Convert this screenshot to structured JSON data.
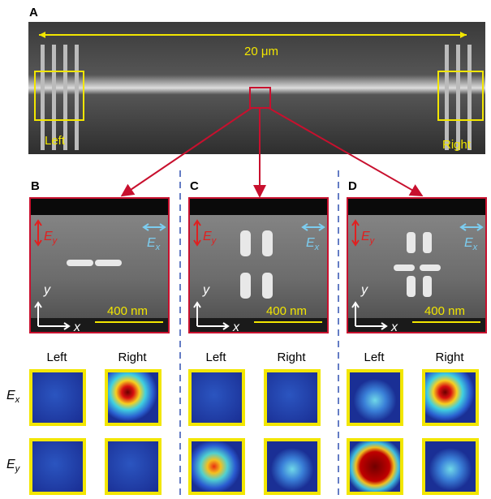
{
  "panel_a": {
    "label": "A",
    "scale_label": "20 μm",
    "left_label": "Left",
    "right_label": "Right"
  },
  "panels": [
    {
      "label": "B",
      "ey": {
        "symbol": "E",
        "subscript": "y"
      },
      "ex": {
        "symbol": "E",
        "subscript": "x"
      },
      "axis_y": "y",
      "axis_x": "x",
      "scale_label": "400 nm",
      "columns": [
        "Left",
        "Right"
      ]
    },
    {
      "label": "C",
      "ey": {
        "symbol": "E",
        "subscript": "y"
      },
      "ex": {
        "symbol": "E",
        "subscript": "x"
      },
      "axis_y": "y",
      "axis_x": "x",
      "scale_label": "400 nm",
      "columns": [
        "Left",
        "Right"
      ]
    },
    {
      "label": "D",
      "ey": {
        "symbol": "E",
        "subscript": "y"
      },
      "ex": {
        "symbol": "E",
        "subscript": "x"
      },
      "axis_y": "y",
      "axis_x": "x",
      "scale_label": "400 nm",
      "columns": [
        "Left",
        "Right"
      ]
    }
  ],
  "rows": [
    {
      "symbol": "E",
      "subscript": "x"
    },
    {
      "symbol": "E",
      "subscript": "y"
    }
  ]
}
